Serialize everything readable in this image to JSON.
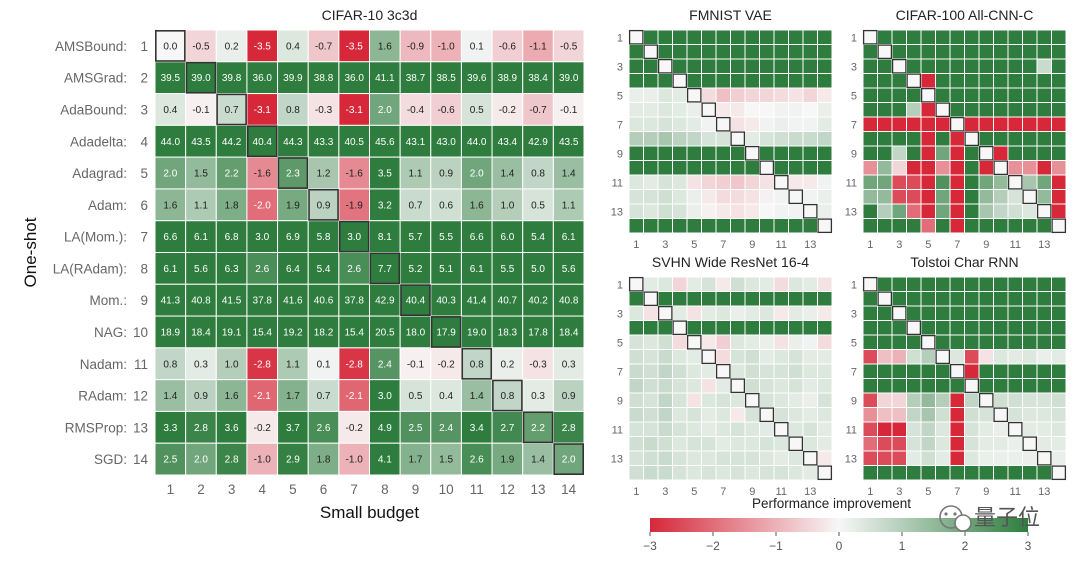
{
  "chart_data": [
    {
      "type": "heatmap",
      "title": "CIFAR-10 3c3d",
      "ylabel": "One-shot",
      "xlabel": "Small budget",
      "row_labels": [
        "AMSBound:",
        "AMSGrad:",
        "AdaBound:",
        "Adadelta:",
        "Adagrad:",
        "Adam:",
        "LA(Mom.):",
        "LA(RAdam):",
        "Mom.:",
        "NAG:",
        "Nadam:",
        "RAdam:",
        "RMSProp:",
        "SGD:"
      ],
      "row_numbers": [
        "1",
        "2",
        "3",
        "4",
        "5",
        "6",
        "7",
        "8",
        "9",
        "10",
        "11",
        "12",
        "13",
        "14"
      ],
      "col_labels": [
        "1",
        "2",
        "3",
        "4",
        "5",
        "6",
        "7",
        "8",
        "9",
        "10",
        "11",
        "12",
        "13",
        "14"
      ],
      "values": [
        [
          0.0,
          -0.5,
          0.2,
          -3.5,
          0.4,
          -0.7,
          -3.5,
          1.6,
          -0.9,
          -1.0,
          0.1,
          -0.6,
          -1.1,
          -0.5
        ],
        [
          39.5,
          39.0,
          39.8,
          36.0,
          39.9,
          38.8,
          36.0,
          41.1,
          38.7,
          38.5,
          39.6,
          38.9,
          38.4,
          39.0
        ],
        [
          0.4,
          -0.1,
          0.7,
          -3.1,
          0.8,
          -0.3,
          -3.1,
          2.0,
          -0.4,
          -0.6,
          0.5,
          -0.2,
          -0.7,
          -0.1
        ],
        [
          44.0,
          43.5,
          44.2,
          40.4,
          44.3,
          43.3,
          40.5,
          45.6,
          43.1,
          43.0,
          44.0,
          43.4,
          42.9,
          43.5
        ],
        [
          2.0,
          1.5,
          2.2,
          -1.6,
          2.3,
          1.2,
          -1.6,
          3.5,
          1.1,
          0.9,
          2.0,
          1.4,
          0.8,
          1.4
        ],
        [
          1.6,
          1.1,
          1.8,
          -2.0,
          1.9,
          0.9,
          -1.9,
          3.2,
          0.7,
          0.6,
          1.6,
          1.0,
          0.5,
          1.1
        ],
        [
          6.6,
          6.1,
          6.8,
          3.0,
          6.9,
          5.8,
          3.0,
          8.1,
          5.7,
          5.5,
          6.6,
          6.0,
          5.4,
          6.1
        ],
        [
          6.1,
          5.6,
          6.3,
          2.6,
          6.4,
          5.4,
          2.6,
          7.7,
          5.2,
          5.1,
          6.1,
          5.5,
          5.0,
          5.6
        ],
        [
          41.3,
          40.8,
          41.5,
          37.8,
          41.6,
          40.6,
          37.8,
          42.9,
          40.4,
          40.3,
          41.4,
          40.7,
          40.2,
          40.8
        ],
        [
          18.9,
          18.4,
          19.1,
          15.4,
          19.2,
          18.2,
          15.4,
          20.5,
          18.0,
          17.9,
          19.0,
          18.3,
          17.8,
          18.4
        ],
        [
          0.8,
          0.3,
          1.0,
          -2.8,
          1.1,
          0.1,
          -2.8,
          2.4,
          -0.1,
          -0.2,
          0.8,
          0.2,
          -0.3,
          0.3
        ],
        [
          1.4,
          0.9,
          1.6,
          -2.1,
          1.7,
          0.7,
          -2.1,
          3.0,
          0.5,
          0.4,
          1.4,
          0.8,
          0.3,
          0.9
        ],
        [
          3.3,
          2.8,
          3.6,
          -0.2,
          3.7,
          2.6,
          -0.2,
          4.9,
          2.5,
          2.4,
          3.4,
          2.7,
          2.2,
          2.8
        ],
        [
          2.5,
          2.0,
          2.8,
          -1.0,
          2.9,
          1.8,
          -1.0,
          4.1,
          1.7,
          1.5,
          2.6,
          1.9,
          1.4,
          2.0
        ]
      ],
      "color_range": [
        -3,
        3
      ],
      "diagonal_highlight": true
    },
    {
      "type": "heatmap",
      "title": "FMNIST VAE",
      "x_ticks": [
        "1",
        "3",
        "5",
        "7",
        "9",
        "11",
        "13"
      ],
      "y_ticks": [
        "1",
        "3",
        "5",
        "7",
        "9",
        "11",
        "13"
      ],
      "values": [
        [
          0.0,
          3,
          3,
          3,
          3,
          3,
          3,
          3,
          3,
          3,
          3,
          3,
          3,
          3
        ],
        [
          3,
          0.0,
          3,
          3,
          3,
          3,
          3,
          3,
          3,
          3,
          3,
          3,
          3,
          3
        ],
        [
          3,
          3,
          0.0,
          3,
          3,
          3,
          3,
          3,
          3,
          3,
          3,
          3,
          3,
          3
        ],
        [
          3,
          3,
          3,
          0.0,
          3,
          3,
          3,
          3,
          3,
          3,
          3,
          3,
          3,
          3
        ],
        [
          0.2,
          0.2,
          0.4,
          0.3,
          0.0,
          -0.4,
          -0.8,
          -0.6,
          -0.5,
          -0.5,
          -0.4,
          -0.3,
          -0.5,
          -0.2
        ],
        [
          0.3,
          0.3,
          0.4,
          0.3,
          0.2,
          0.0,
          -0.2,
          -0.2,
          0.0,
          0.0,
          0.1,
          0.1,
          0.0,
          0.2
        ],
        [
          0.4,
          0.4,
          0.5,
          0.4,
          0.3,
          0.1,
          0.0,
          -0.3,
          -0.2,
          0.1,
          0.2,
          0.1,
          0.1,
          0.3
        ],
        [
          1.0,
          1.0,
          1.2,
          0.9,
          0.8,
          0.5,
          0.5,
          0.0,
          0.3,
          0.5,
          0.6,
          0.7,
          0.7,
          0.8
        ],
        [
          3,
          3,
          3,
          3,
          3,
          3,
          3,
          3,
          0.0,
          3,
          3,
          3,
          3,
          3
        ],
        [
          3,
          3,
          3,
          3,
          3,
          3,
          3,
          3,
          3,
          0.0,
          3,
          3,
          3,
          3
        ],
        [
          0.4,
          0.3,
          0.5,
          0.4,
          -0.3,
          -0.5,
          -0.6,
          -0.7,
          -0.5,
          -0.3,
          0.0,
          -0.2,
          -0.2,
          0.1
        ],
        [
          0.5,
          0.5,
          0.6,
          0.4,
          0.2,
          -0.2,
          -0.4,
          -0.4,
          -0.3,
          -0.1,
          0.1,
          0.0,
          0.1,
          0.2
        ],
        [
          0.5,
          0.4,
          0.6,
          0.5,
          0.2,
          -0.1,
          -0.2,
          -0.3,
          -0.2,
          0.0,
          0.1,
          0.1,
          0.0,
          0.2
        ],
        [
          3,
          3,
          3,
          3,
          3,
          3,
          3,
          3,
          3,
          3,
          3,
          3,
          3,
          0.0
        ]
      ],
      "color_range": [
        -3,
        3
      ],
      "diagonal_highlight": true
    },
    {
      "type": "heatmap",
      "title": "CIFAR-100 All-CNN-C",
      "x_ticks": [
        "1",
        "3",
        "5",
        "7",
        "9",
        "11",
        "13"
      ],
      "y_ticks": [
        "1",
        "3",
        "5",
        "7",
        "9",
        "11",
        "13"
      ],
      "values": [
        [
          0.0,
          3,
          3,
          3,
          3,
          3,
          3,
          3,
          3,
          3,
          3,
          3,
          3,
          3
        ],
        [
          3,
          0.0,
          3,
          3,
          3,
          3,
          3,
          3,
          3,
          3,
          3,
          3,
          3,
          3
        ],
        [
          3,
          3,
          0.0,
          3,
          3,
          3,
          3,
          3,
          3,
          3,
          3,
          3,
          0.7,
          3
        ],
        [
          3,
          3,
          3,
          0.0,
          -3,
          3,
          3,
          3,
          3,
          3,
          3,
          3,
          3,
          3
        ],
        [
          3,
          3,
          3,
          3,
          0.0,
          3,
          3,
          3,
          3,
          3,
          3,
          3,
          3,
          3
        ],
        [
          3,
          3,
          3,
          1.0,
          -3,
          0.0,
          3,
          3,
          3,
          3,
          3,
          3,
          3,
          3
        ],
        [
          -3,
          -3,
          -3,
          -3,
          -3,
          -3,
          0.0,
          -3,
          -3,
          -3,
          -3,
          -3,
          -3,
          -3
        ],
        [
          3,
          3,
          3,
          3,
          -3,
          3,
          -3,
          0.0,
          3,
          3,
          3,
          3,
          3,
          3
        ],
        [
          3,
          3,
          0.8,
          3,
          -3,
          2.0,
          -3,
          3,
          0.0,
          -3,
          3,
          3,
          3,
          3
        ],
        [
          -1.5,
          1.5,
          -0.5,
          -3,
          -3,
          -1.5,
          -3,
          3,
          -3,
          0.0,
          -1.5,
          -1.5,
          -3,
          -1.5
        ],
        [
          2.0,
          2.0,
          -2.5,
          -2.5,
          -3,
          2.5,
          -3,
          3,
          2.0,
          1.5,
          0.0,
          1.2,
          2.0,
          -3
        ],
        [
          1.5,
          1.5,
          -2.5,
          -2.5,
          -3,
          2.0,
          -3,
          3,
          1.5,
          1.0,
          0.5,
          0.0,
          1.5,
          -3
        ],
        [
          3,
          1.0,
          2.0,
          -2.0,
          -3,
          2.0,
          -3,
          3,
          1.2,
          0.8,
          0.6,
          0.4,
          0.0,
          -3
        ],
        [
          3,
          3,
          3,
          3,
          -2.0,
          3,
          -3,
          3,
          3,
          3,
          3,
          3,
          3,
          0.0
        ]
      ],
      "color_range": [
        -3,
        3
      ],
      "diagonal_highlight": true
    },
    {
      "type": "heatmap",
      "title": "SVHN Wide ResNet 16-4",
      "x_ticks": [
        "1",
        "3",
        "5",
        "7",
        "9",
        "11",
        "13"
      ],
      "y_ticks": [
        "1",
        "3",
        "5",
        "7",
        "9",
        "11",
        "13"
      ],
      "values": [
        [
          0.0,
          0.3,
          0.4,
          -0.5,
          0.3,
          0.5,
          -0.2,
          0.6,
          0.4,
          0.3,
          -0.4,
          0.4,
          0.3,
          -0.3
        ],
        [
          3,
          0.0,
          3,
          3,
          3,
          3,
          3,
          3,
          3,
          3,
          3,
          3,
          3,
          3
        ],
        [
          0.4,
          -0.3,
          0.0,
          0.3,
          -0.3,
          0.3,
          0.4,
          0.2,
          0.3,
          0.4,
          -0.2,
          0.3,
          0.2,
          -0.2
        ],
        [
          3,
          3,
          3,
          0.0,
          3,
          3,
          3,
          3,
          3,
          3,
          3,
          3,
          3,
          3
        ],
        [
          0.5,
          0.4,
          0.6,
          -0.4,
          0.0,
          -0.2,
          -0.6,
          0.4,
          0.3,
          0.2,
          -0.3,
          0.2,
          0.1,
          -0.4
        ],
        [
          0.6,
          0.5,
          0.7,
          0.4,
          0.3,
          0.0,
          -0.4,
          0.5,
          0.6,
          0.3,
          0.4,
          0.5,
          0.3,
          0.3
        ],
        [
          0.7,
          0.6,
          0.8,
          0.6,
          0.4,
          0.3,
          0.0,
          0.4,
          0.6,
          0.5,
          0.5,
          0.6,
          0.4,
          0.4
        ],
        [
          0.8,
          0.6,
          0.7,
          0.5,
          0.4,
          -0.3,
          0.3,
          0.0,
          0.6,
          0.5,
          0.4,
          0.5,
          0.3,
          0.4
        ],
        [
          0.6,
          0.5,
          0.8,
          0.5,
          -0.3,
          0.4,
          0.5,
          0.4,
          0.0,
          0.5,
          0.4,
          0.3,
          0.2,
          0.5
        ],
        [
          0.7,
          0.6,
          0.8,
          0.4,
          0.5,
          0.3,
          0.4,
          -0.2,
          0.5,
          0.0,
          0.5,
          0.4,
          0.3,
          0.4
        ],
        [
          0.5,
          0.5,
          0.7,
          0.5,
          0.4,
          0.3,
          0.4,
          0.5,
          0.4,
          0.3,
          0.0,
          0.4,
          0.5,
          0.3
        ],
        [
          0.6,
          0.7,
          0.6,
          0.4,
          0.5,
          0.5,
          0.3,
          0.4,
          0.4,
          0.5,
          0.4,
          0.0,
          0.4,
          0.3
        ],
        [
          0.5,
          0.6,
          0.7,
          0.5,
          0.4,
          0.4,
          0.5,
          0.5,
          0.5,
          0.4,
          0.3,
          0.4,
          0.0,
          -0.2
        ],
        [
          0.6,
          0.7,
          0.7,
          0.5,
          0.4,
          0.5,
          0.4,
          0.5,
          0.4,
          0.5,
          0.5,
          0.4,
          0.3,
          0.0
        ]
      ],
      "color_range": [
        -3,
        3
      ],
      "diagonal_highlight": true
    },
    {
      "type": "heatmap",
      "title": "Tolstoi Char RNN",
      "x_ticks": [
        "1",
        "3",
        "5",
        "7",
        "9",
        "11",
        "13"
      ],
      "y_ticks": [
        "1",
        "3",
        "5",
        "7",
        "9",
        "11",
        "13"
      ],
      "values": [
        [
          0.0,
          3,
          3,
          3,
          3,
          3,
          3,
          3,
          3,
          3,
          3,
          3,
          3,
          3
        ],
        [
          3,
          0.0,
          3,
          3,
          3,
          3,
          3,
          3,
          3,
          3,
          3,
          3,
          3,
          3
        ],
        [
          3,
          3,
          0.0,
          3,
          3,
          3,
          3,
          3,
          3,
          3,
          3,
          3,
          3,
          3
        ],
        [
          3,
          3,
          3,
          0.0,
          3,
          3,
          3,
          3,
          3,
          3,
          3,
          3,
          3,
          3
        ],
        [
          3,
          3,
          3,
          3,
          0.0,
          3,
          3,
          3,
          3,
          3,
          3,
          3,
          3,
          3
        ],
        [
          -2.5,
          -0.8,
          -1.0,
          0.6,
          1.0,
          0.0,
          0.4,
          -2.5,
          -0.3,
          0.4,
          0.3,
          0.4,
          0.2,
          0.3
        ],
        [
          3,
          3,
          3,
          3,
          3,
          3,
          0.0,
          -3,
          3,
          3,
          3,
          3,
          3,
          3
        ],
        [
          3,
          3,
          3,
          3,
          3,
          3,
          3,
          0.0,
          3,
          3,
          3,
          3,
          3,
          3
        ],
        [
          -2.5,
          -0.5,
          -0.5,
          1.0,
          1.5,
          1.0,
          -3,
          0.8,
          0.0,
          0.6,
          0.6,
          0.5,
          0.5,
          0.6
        ],
        [
          -1.5,
          -0.8,
          -0.8,
          0.8,
          1.2,
          0.6,
          -3,
          0.6,
          0.5,
          0.0,
          0.5,
          0.4,
          0.4,
          0.5
        ],
        [
          -2.5,
          -3,
          -3,
          0.5,
          0.8,
          0.4,
          -3,
          0.5,
          0.3,
          0.2,
          0.0,
          0.3,
          0.3,
          0.4
        ],
        [
          -2.0,
          -2.5,
          -2.5,
          0.5,
          0.8,
          0.4,
          -3,
          0.5,
          0.3,
          0.3,
          0.2,
          0.0,
          0.3,
          0.3
        ],
        [
          -2.5,
          -2.5,
          -2.5,
          0.3,
          0.6,
          0.3,
          -3,
          0.4,
          0.2,
          0.2,
          0.2,
          0.2,
          0.0,
          0.2
        ],
        [
          3,
          3,
          3,
          3,
          3,
          3,
          3,
          3,
          3,
          3,
          3,
          3,
          3,
          0.0
        ]
      ],
      "color_range": [
        -3,
        3
      ],
      "diagonal_highlight": true
    }
  ],
  "colorbar": {
    "label": "Performance improvement",
    "ticks": [
      "−3",
      "−2",
      "−1",
      "0",
      "1",
      "2",
      "3"
    ],
    "range": [
      -3,
      3
    ],
    "color_low": "#d62839",
    "color_mid": "#f7f7f7",
    "color_high": "#2e7d3e"
  },
  "watermark": {
    "text": "量子位"
  }
}
